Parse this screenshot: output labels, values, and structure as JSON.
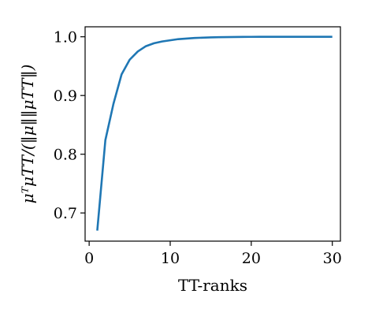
{
  "chart_data": {
    "type": "line",
    "xlabel": "TT-ranks",
    "ylabel": "μᵀμTT/(‖μ‖‖μTT‖)",
    "xlim": [
      -0.5,
      31
    ],
    "ylim": [
      0.652,
      1.017
    ],
    "xticks": [
      0,
      10,
      20,
      30
    ],
    "yticks": [
      0.7,
      0.8,
      0.9,
      1.0
    ],
    "xtick_labels": [
      "0",
      "10",
      "20",
      "30"
    ],
    "ytick_labels": [
      "0.7",
      "0.8",
      "0.9",
      "1.0"
    ],
    "grid": false,
    "series": [
      {
        "color": "#1f77b4",
        "x": [
          1,
          2,
          3,
          4,
          5,
          6,
          7,
          8,
          9,
          10,
          11,
          12,
          13,
          14,
          15,
          16,
          17,
          18,
          19,
          20,
          21,
          22,
          23,
          24,
          25,
          26,
          27,
          28,
          29,
          30
        ],
        "y": [
          0.67,
          0.824,
          0.886,
          0.936,
          0.961,
          0.975,
          0.984,
          0.989,
          0.992,
          0.994,
          0.996,
          0.997,
          0.998,
          0.9985,
          0.999,
          0.9993,
          0.9995,
          0.9997,
          0.9998,
          0.9999,
          1.0,
          1.0,
          1.0,
          1.0,
          1.0,
          1.0,
          1.0,
          1.0,
          1.0,
          1.0
        ]
      }
    ]
  }
}
